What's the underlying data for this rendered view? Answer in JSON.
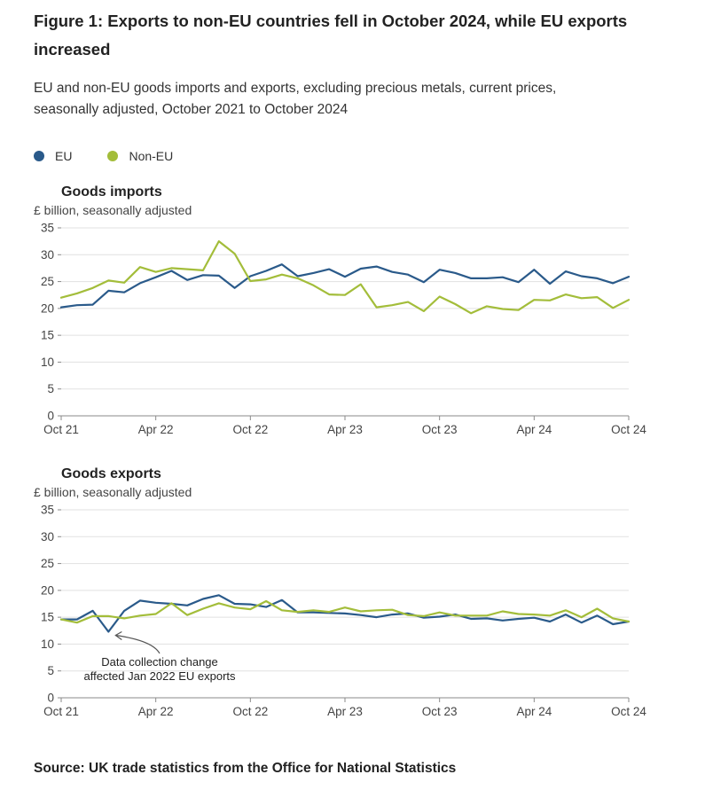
{
  "figure": {
    "title": "Figure 1: Exports to non-EU countries fell in October 2024, while EU exports increased",
    "subtitle": "EU and non-EU goods imports and exports, excluding precious metals, current prices, seasonally adjusted, October 2021 to October 2024",
    "source": "Source: UK trade statistics from the Office for National Statistics"
  },
  "legend": [
    {
      "name": "EU",
      "color": "#2a5a8a"
    },
    {
      "name": "Non-EU",
      "color": "#a3bd3a"
    }
  ],
  "chart_data": [
    {
      "type": "line",
      "title": "Goods imports",
      "ylabel": "£ billion, seasonally adjusted",
      "xlabel": "",
      "ylim": [
        0,
        35
      ],
      "yticks": [
        0,
        5,
        10,
        15,
        20,
        25,
        30,
        35
      ],
      "xtick_labels": [
        {
          "index": 0,
          "label": "Oct 21"
        },
        {
          "index": 6,
          "label": "Apr 22"
        },
        {
          "index": 12,
          "label": "Oct 22"
        },
        {
          "index": 18,
          "label": "Apr 23"
        },
        {
          "index": 24,
          "label": "Oct 23"
        },
        {
          "index": 30,
          "label": "Apr 24"
        },
        {
          "index": 36,
          "label": "Oct 24"
        }
      ],
      "grid": true,
      "series": [
        {
          "name": "EU",
          "color": "#2a5a8a",
          "values": [
            20.2,
            20.6,
            20.7,
            23.3,
            23.0,
            24.7,
            25.8,
            27.0,
            25.3,
            26.2,
            26.1,
            23.8,
            26.0,
            27.0,
            28.2,
            26.0,
            26.6,
            27.3,
            25.9,
            27.4,
            27.8,
            26.8,
            26.3,
            24.9,
            27.2,
            26.6,
            25.6,
            25.6,
            25.8,
            24.9,
            27.2,
            24.6,
            26.9,
            26.0,
            25.6,
            24.7,
            25.9
          ]
        },
        {
          "name": "Non-EU",
          "color": "#a3bd3a",
          "values": [
            22.0,
            22.8,
            23.8,
            25.2,
            24.8,
            27.7,
            26.8,
            27.5,
            27.3,
            27.1,
            32.5,
            30.2,
            25.1,
            25.4,
            26.3,
            25.6,
            24.3,
            22.6,
            22.5,
            24.5,
            20.2,
            20.6,
            21.2,
            19.5,
            22.2,
            20.8,
            19.1,
            20.4,
            19.9,
            19.7,
            21.6,
            21.5,
            22.6,
            21.9,
            22.1,
            20.1,
            21.6
          ]
        }
      ]
    },
    {
      "type": "line",
      "title": "Goods exports",
      "ylabel": "£ billion, seasonally adjusted",
      "xlabel": "",
      "ylim": [
        0,
        35
      ],
      "yticks": [
        0,
        5,
        10,
        15,
        20,
        25,
        30,
        35
      ],
      "xtick_labels": [
        {
          "index": 0,
          "label": "Oct 21"
        },
        {
          "index": 6,
          "label": "Apr 22"
        },
        {
          "index": 12,
          "label": "Oct 22"
        },
        {
          "index": 18,
          "label": "Apr 23"
        },
        {
          "index": 24,
          "label": "Oct 23"
        },
        {
          "index": 30,
          "label": "Apr 24"
        },
        {
          "index": 36,
          "label": "Oct 24"
        }
      ],
      "grid": true,
      "annotation": {
        "lines": [
          "Data collection change",
          "affected Jan 2022 EU exports"
        ],
        "points_to_index": 3,
        "series": "EU"
      },
      "series": [
        {
          "name": "EU",
          "color": "#2a5a8a",
          "values": [
            14.6,
            14.6,
            16.2,
            12.3,
            16.2,
            18.1,
            17.7,
            17.5,
            17.2,
            18.4,
            19.1,
            17.5,
            17.4,
            16.9,
            18.2,
            15.9,
            15.9,
            15.8,
            15.7,
            15.4,
            15.0,
            15.5,
            15.7,
            14.9,
            15.1,
            15.5,
            14.7,
            14.8,
            14.4,
            14.7,
            14.9,
            14.2,
            15.5,
            14.0,
            15.3,
            13.7,
            14.2
          ]
        },
        {
          "name": "Non-EU",
          "color": "#a3bd3a",
          "values": [
            14.6,
            14.0,
            15.2,
            15.2,
            14.8,
            15.3,
            15.6,
            17.6,
            15.4,
            16.6,
            17.6,
            16.8,
            16.5,
            18.0,
            16.3,
            16.0,
            16.3,
            16.0,
            16.8,
            16.1,
            16.3,
            16.4,
            15.4,
            15.2,
            15.9,
            15.3,
            15.3,
            15.3,
            16.1,
            15.6,
            15.5,
            15.3,
            16.3,
            15.0,
            16.6,
            14.8,
            14.2
          ]
        }
      ]
    }
  ]
}
